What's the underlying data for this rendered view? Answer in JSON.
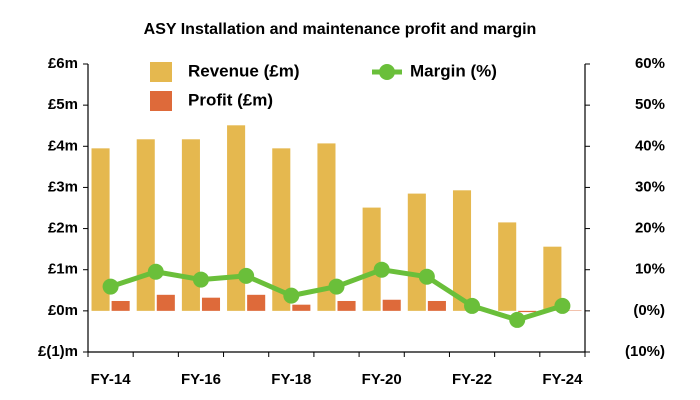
{
  "chart_data": {
    "type": "bar",
    "title": "ASY Installation and maintenance profit and margin",
    "categories": [
      "FY-14",
      null,
      "FY-16",
      null,
      "FY-18",
      null,
      "FY-20",
      null,
      "FY-22",
      null,
      "FY-24"
    ],
    "series": [
      {
        "name": "Revenue (£m)",
        "color": "#e5b84f",
        "values": [
          3.95,
          4.17,
          4.17,
          4.51,
          3.95,
          4.07,
          2.51,
          2.85,
          2.93,
          2.15,
          1.56
        ]
      },
      {
        "name": "Profit (£m)",
        "color": "#de6a3a",
        "values": [
          0.24,
          0.39,
          0.32,
          0.39,
          0.15,
          0.24,
          0.27,
          0.24,
          0.02,
          -0.03,
          0.01
        ]
      },
      {
        "name": "Margin (%)",
        "color": "#6abf3a",
        "type": "line",
        "axis": "y2",
        "values": [
          5.9,
          9.5,
          7.6,
          8.5,
          3.7,
          5.9,
          10,
          8.3,
          1.2,
          -2.2,
          1.2
        ]
      }
    ],
    "ylim": [
      -1,
      6
    ],
    "yticks": [
      {
        "value": -1,
        "label": "£(1)m"
      },
      {
        "value": 0,
        "label": "£0m"
      },
      {
        "value": 1,
        "label": "£1m"
      },
      {
        "value": 2,
        "label": "£2m"
      },
      {
        "value": 3,
        "label": "£3m"
      },
      {
        "value": 4,
        "label": "£4m"
      },
      {
        "value": 5,
        "label": "£5m"
      },
      {
        "value": 6,
        "label": "£6m"
      }
    ],
    "y2lim": [
      -10,
      60
    ],
    "y2ticks": [
      {
        "value": -10,
        "label": "(10%)"
      },
      {
        "value": 0,
        "label": "(0%)"
      },
      {
        "value": 10,
        "label": "10%"
      },
      {
        "value": 20,
        "label": "20%"
      },
      {
        "value": 30,
        "label": "30%"
      },
      {
        "value": 40,
        "label": "40%"
      },
      {
        "value": 50,
        "label": "50%"
      },
      {
        "value": 60,
        "label": "60%"
      }
    ],
    "legend": "top",
    "grid": false
  }
}
